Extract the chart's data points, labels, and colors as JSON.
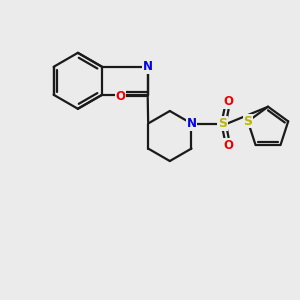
{
  "background_color": "#ebebeb",
  "bond_color": "#1a1a1a",
  "N_color": "#0000ee",
  "O_color": "#ee0000",
  "S_color": "#b8b800",
  "line_width": 1.6,
  "figsize": [
    3.0,
    3.0
  ],
  "dpi": 100,
  "xlim": [
    0,
    10
  ],
  "ylim": [
    0,
    10
  ]
}
